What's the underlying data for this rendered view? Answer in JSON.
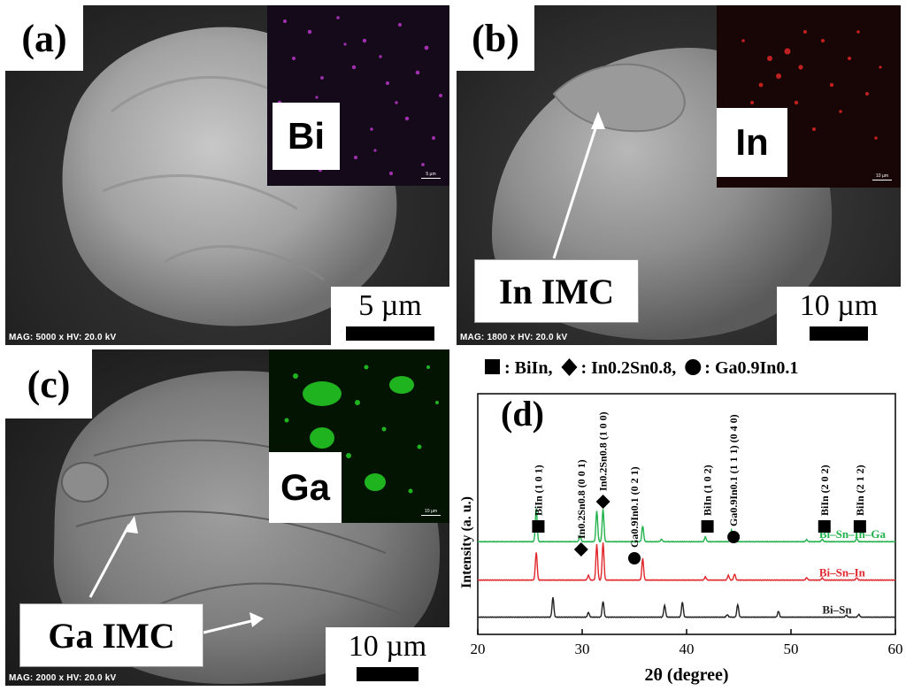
{
  "panel_a": {
    "label": "(a)",
    "inset_element": "Bi",
    "inset_scale_text": "5 µm",
    "scale_text": "5 µm",
    "mag_text": "MAG: 5000 x  HV: 20.0 kV"
  },
  "panel_b": {
    "label": "(b)",
    "inset_element": "In",
    "inset_scale_text": "10 µm",
    "callout": "In IMC",
    "scale_text": "10 µm",
    "mag_text": "MAG: 1800 x  HV: 20.0 kV"
  },
  "panel_c": {
    "label": "(c)",
    "inset_element": "Ga",
    "inset_scale_text": "10 µm",
    "callout": "Ga IMC",
    "scale_text": "10 µm",
    "mag_text": "MAG: 2000 x  HV: 20.0 kV"
  },
  "chart_data": {
    "type": "line",
    "panel_label": "(d)",
    "legend": ": BiIn,  : In0.2Sn0.8,  : Ga0.9In0.1",
    "legend_items": [
      {
        "marker": "square",
        "text": ": BiIn,"
      },
      {
        "marker": "diamond",
        "text": ": In0.2Sn0.8,"
      },
      {
        "marker": "circle",
        "text": ": Ga0.9In0.1"
      }
    ],
    "xlabel": "2θ (degree)",
    "ylabel": "Intensity (a. u.)",
    "xlim": [
      20,
      60
    ],
    "xticks": [
      20,
      30,
      40,
      50,
      60
    ],
    "series": [
      {
        "name": "Bi–Sn–In–Ga",
        "color": "#22b24c",
        "baseline": 0.62,
        "peaks": [
          [
            25.6,
            0.85
          ],
          [
            29.8,
            0.15
          ],
          [
            31.4,
            0.78
          ],
          [
            32.0,
            0.82
          ],
          [
            35.8,
            0.4
          ],
          [
            37.6,
            0.06
          ],
          [
            41.8,
            0.12
          ],
          [
            44.3,
            0.3
          ],
          [
            51.5,
            0.05
          ],
          [
            53.0,
            0.06
          ],
          [
            56.3,
            0.08
          ]
        ]
      },
      {
        "name": "Bi–Sn–In",
        "color": "#e0262b",
        "baseline": 0.33,
        "peaks": [
          [
            25.6,
            0.7
          ],
          [
            30.6,
            0.12
          ],
          [
            31.4,
            0.9
          ],
          [
            32.0,
            0.95
          ],
          [
            35.8,
            0.55
          ],
          [
            41.8,
            0.08
          ],
          [
            44.0,
            0.12
          ],
          [
            44.6,
            0.15
          ],
          [
            51.5,
            0.06
          ],
          [
            53.0,
            0.05
          ],
          [
            56.3,
            0.06
          ]
        ]
      },
      {
        "name": "Bi–Sn",
        "color": "#222222",
        "baseline": 0.05,
        "peaks": [
          [
            27.2,
            0.5
          ],
          [
            30.6,
            0.12
          ],
          [
            32.0,
            0.4
          ],
          [
            37.9,
            0.3
          ],
          [
            39.6,
            0.38
          ],
          [
            43.9,
            0.06
          ],
          [
            44.9,
            0.32
          ],
          [
            48.8,
            0.15
          ],
          [
            55.3,
            0.05
          ],
          [
            56.5,
            0.07
          ]
        ]
      }
    ],
    "annotations": [
      {
        "text": "BiIn (1 0 1)",
        "marker": "square",
        "x": 25.8
      },
      {
        "text": "In0.2Sn0.8 (0 0 1)",
        "marker": "diamond",
        "x": 29.9
      },
      {
        "text": "In0.2Sn0.8 (1 0 0)",
        "marker": "diamond",
        "x": 32.0
      },
      {
        "text": "Ga0.9In0.1 (0 2 1)",
        "marker": "circle",
        "x": 35.0
      },
      {
        "text": "BiIn (1 0 2)",
        "marker": "square",
        "x": 42.0
      },
      {
        "text": "Ga0.9In0.1 (1 1 1) (0 4 0)",
        "marker": "circle",
        "x": 44.5
      },
      {
        "text": "BiIn (2 0 2)",
        "marker": "square",
        "x": 53.2
      },
      {
        "text": "BiIn (2 1 2)",
        "marker": "square",
        "x": 56.6
      }
    ]
  }
}
